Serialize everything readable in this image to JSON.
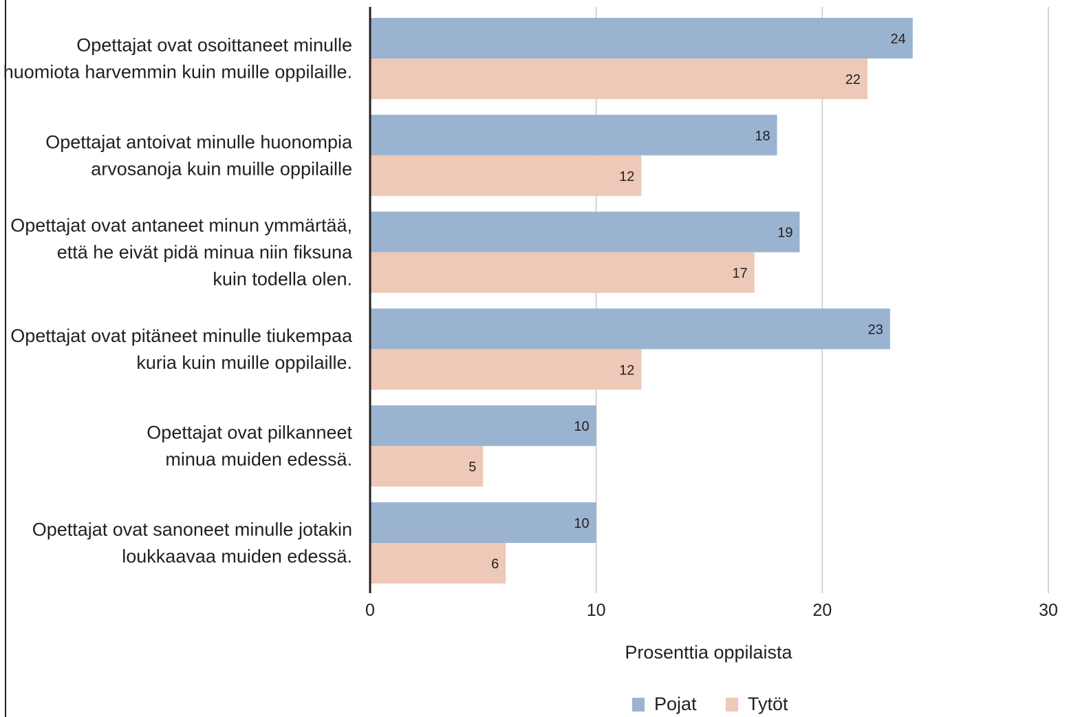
{
  "chart_data": {
    "type": "bar",
    "orientation": "horizontal",
    "categories": [
      [
        "Opettajat ovat osoittaneet minulle",
        "huomiota harvemmin kuin muille oppilaille."
      ],
      [
        "Opettajat antoivat minulle huonompia",
        "arvosanoja kuin muille oppilaille"
      ],
      [
        "Opettajat ovat antaneet minun ymmärtää,",
        "että he eivät pidä minua niin fiksuna",
        "kuin todella olen."
      ],
      [
        "Opettajat ovat pitäneet minulle tiukempaa",
        "kuria kuin muille oppilaille."
      ],
      [
        "Opettajat ovat pilkanneet",
        "minua muiden edessä."
      ],
      [
        "Opettajat ovat sanoneet minulle jotakin",
        "loukkaavaa muiden edessä."
      ]
    ],
    "series": [
      {
        "name": "Pojat",
        "color": "#9ab3d0",
        "values": [
          24,
          18,
          19,
          23,
          10,
          10
        ]
      },
      {
        "name": "Tytöt",
        "color": "#eec9b7",
        "values": [
          22,
          12,
          17,
          12,
          5,
          6
        ]
      }
    ],
    "xlabel": "Prosenttia oppilaista",
    "xlim": [
      0,
      30
    ],
    "xticks": [
      0,
      10,
      20,
      30
    ],
    "grid": "vertical",
    "legend_position": "bottom"
  }
}
